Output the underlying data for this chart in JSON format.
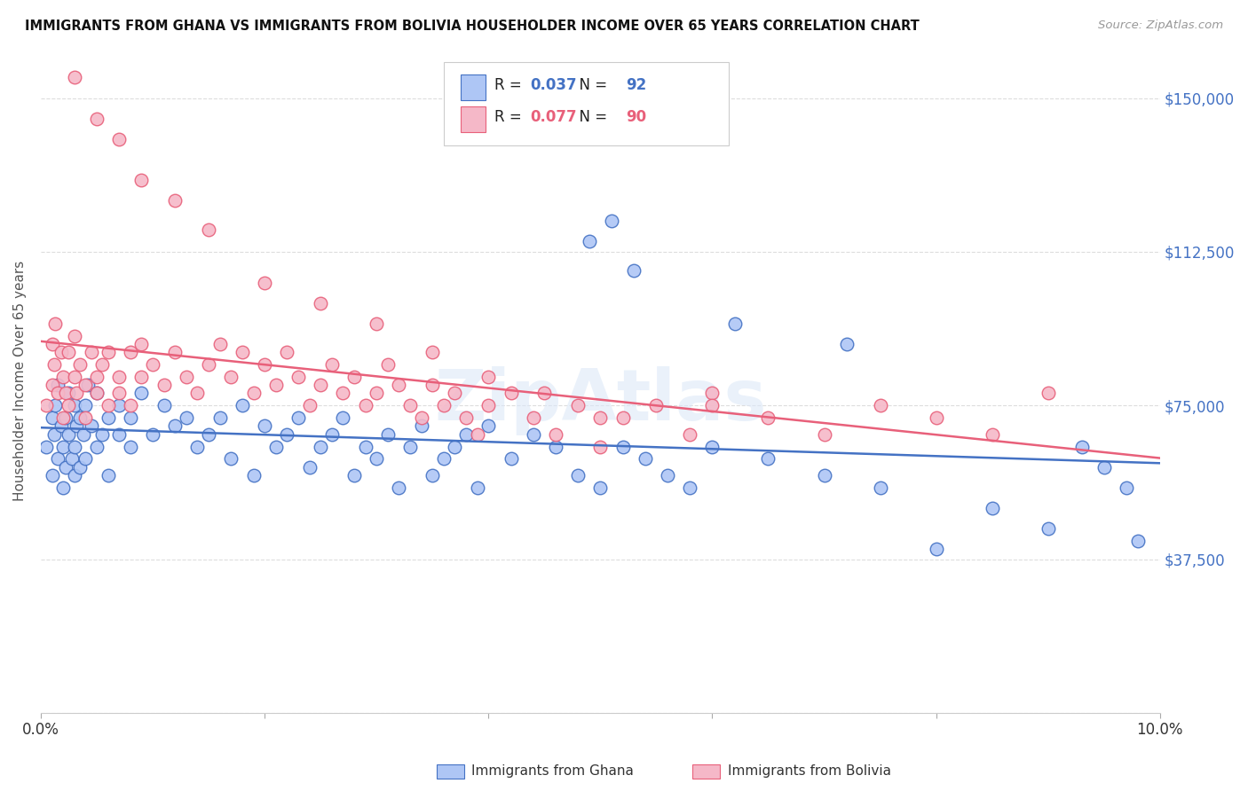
{
  "title": "IMMIGRANTS FROM GHANA VS IMMIGRANTS FROM BOLIVIA HOUSEHOLDER INCOME OVER 65 YEARS CORRELATION CHART",
  "source": "Source: ZipAtlas.com",
  "ylabel": "Householder Income Over 65 years",
  "yticks": [
    0,
    37500,
    75000,
    112500,
    150000
  ],
  "ytick_labels": [
    "",
    "$37,500",
    "$75,000",
    "$112,500",
    "$150,000"
  ],
  "xlim": [
    0.0,
    0.1
  ],
  "ylim": [
    0,
    162000
  ],
  "ghana_R": 0.037,
  "ghana_N": 92,
  "bolivia_R": 0.077,
  "bolivia_N": 90,
  "ghana_color": "#aec6f5",
  "bolivia_color": "#f5b8c8",
  "ghana_line_color": "#4472c4",
  "bolivia_line_color": "#e8607a",
  "ghana_edge_color": "#4472c4",
  "bolivia_edge_color": "#e8607a",
  "watermark": "ZipAtlas",
  "background_color": "#ffffff",
  "grid_color": "#dddddd",
  "ghana_x": [
    0.0005,
    0.001,
    0.001,
    0.0012,
    0.0013,
    0.0015,
    0.0015,
    0.0018,
    0.002,
    0.002,
    0.0022,
    0.0022,
    0.0025,
    0.0025,
    0.0028,
    0.003,
    0.003,
    0.003,
    0.0032,
    0.0035,
    0.0035,
    0.0038,
    0.004,
    0.004,
    0.0042,
    0.0045,
    0.005,
    0.005,
    0.0055,
    0.006,
    0.006,
    0.007,
    0.007,
    0.008,
    0.008,
    0.009,
    0.01,
    0.011,
    0.012,
    0.013,
    0.014,
    0.015,
    0.016,
    0.017,
    0.018,
    0.019,
    0.02,
    0.021,
    0.022,
    0.023,
    0.024,
    0.025,
    0.026,
    0.027,
    0.028,
    0.029,
    0.03,
    0.031,
    0.032,
    0.033,
    0.034,
    0.035,
    0.036,
    0.037,
    0.038,
    0.039,
    0.04,
    0.042,
    0.044,
    0.046,
    0.048,
    0.05,
    0.052,
    0.054,
    0.056,
    0.058,
    0.06,
    0.065,
    0.07,
    0.075,
    0.08,
    0.085,
    0.09,
    0.093,
    0.095,
    0.097,
    0.049,
    0.051,
    0.053,
    0.062,
    0.072,
    0.098
  ],
  "ghana_y": [
    65000,
    58000,
    72000,
    68000,
    75000,
    62000,
    80000,
    70000,
    65000,
    55000,
    72000,
    60000,
    68000,
    78000,
    62000,
    75000,
    65000,
    58000,
    70000,
    72000,
    60000,
    68000,
    75000,
    62000,
    80000,
    70000,
    65000,
    78000,
    68000,
    72000,
    58000,
    75000,
    68000,
    65000,
    72000,
    78000,
    68000,
    75000,
    70000,
    72000,
    65000,
    68000,
    72000,
    62000,
    75000,
    58000,
    70000,
    65000,
    68000,
    72000,
    60000,
    65000,
    68000,
    72000,
    58000,
    65000,
    62000,
    68000,
    55000,
    65000,
    70000,
    58000,
    62000,
    65000,
    68000,
    55000,
    70000,
    62000,
    68000,
    65000,
    58000,
    55000,
    65000,
    62000,
    58000,
    55000,
    65000,
    62000,
    58000,
    55000,
    40000,
    50000,
    45000,
    65000,
    60000,
    55000,
    115000,
    120000,
    108000,
    95000,
    90000,
    42000
  ],
  "bolivia_x": [
    0.0005,
    0.001,
    0.001,
    0.0012,
    0.0013,
    0.0015,
    0.0018,
    0.002,
    0.002,
    0.0022,
    0.0025,
    0.0025,
    0.003,
    0.003,
    0.0032,
    0.0035,
    0.004,
    0.004,
    0.0045,
    0.005,
    0.005,
    0.0055,
    0.006,
    0.006,
    0.007,
    0.007,
    0.008,
    0.008,
    0.009,
    0.009,
    0.01,
    0.011,
    0.012,
    0.013,
    0.014,
    0.015,
    0.016,
    0.017,
    0.018,
    0.019,
    0.02,
    0.021,
    0.022,
    0.023,
    0.024,
    0.025,
    0.026,
    0.027,
    0.028,
    0.029,
    0.03,
    0.031,
    0.032,
    0.033,
    0.034,
    0.035,
    0.036,
    0.037,
    0.038,
    0.039,
    0.04,
    0.042,
    0.044,
    0.046,
    0.048,
    0.05,
    0.052,
    0.055,
    0.058,
    0.06,
    0.065,
    0.07,
    0.075,
    0.08,
    0.085,
    0.09,
    0.003,
    0.005,
    0.007,
    0.009,
    0.012,
    0.015,
    0.02,
    0.025,
    0.03,
    0.035,
    0.04,
    0.045,
    0.05,
    0.06
  ],
  "bolivia_y": [
    75000,
    80000,
    90000,
    85000,
    95000,
    78000,
    88000,
    82000,
    72000,
    78000,
    88000,
    75000,
    82000,
    92000,
    78000,
    85000,
    80000,
    72000,
    88000,
    82000,
    78000,
    85000,
    75000,
    88000,
    82000,
    78000,
    88000,
    75000,
    82000,
    90000,
    85000,
    80000,
    88000,
    82000,
    78000,
    85000,
    90000,
    82000,
    88000,
    78000,
    85000,
    80000,
    88000,
    82000,
    75000,
    80000,
    85000,
    78000,
    82000,
    75000,
    78000,
    85000,
    80000,
    75000,
    72000,
    80000,
    75000,
    78000,
    72000,
    68000,
    75000,
    78000,
    72000,
    68000,
    75000,
    65000,
    72000,
    75000,
    68000,
    78000,
    72000,
    68000,
    75000,
    72000,
    68000,
    78000,
    155000,
    145000,
    140000,
    130000,
    125000,
    118000,
    105000,
    100000,
    95000,
    88000,
    82000,
    78000,
    72000,
    75000
  ]
}
